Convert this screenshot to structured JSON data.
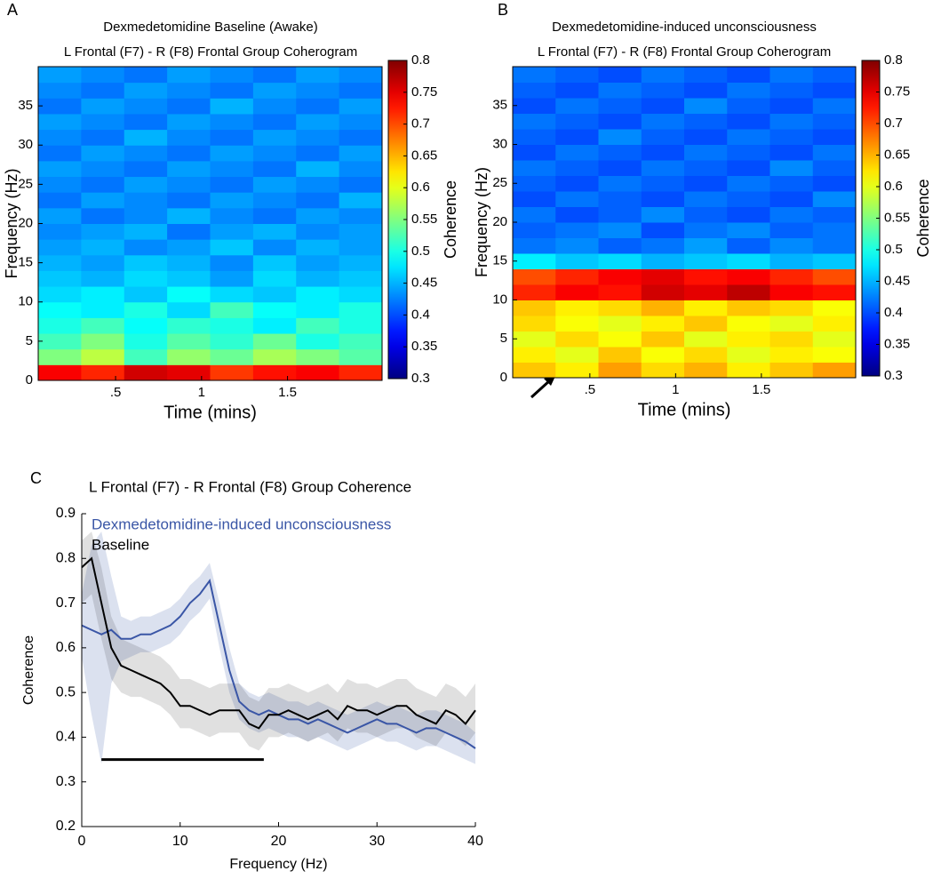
{
  "chart_data": [
    {
      "type": "heatmap",
      "panel": "A",
      "title": [
        "Dexmedetomidine Baseline (Awake)",
        "L Frontal (F7) -  R (F8) Frontal Group Coherogram"
      ],
      "xlabel": "Time (mins)",
      "ylabel": "Frequency (Hz)",
      "x": [
        0.175,
        0.425,
        0.675,
        0.925,
        1.175,
        1.425,
        1.675,
        1.925
      ],
      "y": [
        1,
        3,
        5,
        7,
        9,
        11,
        13,
        15,
        17,
        19,
        21,
        23,
        25,
        27,
        29,
        31,
        33,
        35,
        37,
        39
      ],
      "z": [
        [
          0.74,
          0.72,
          0.76,
          0.75,
          0.71,
          0.73,
          0.74,
          0.72
        ],
        [
          0.55,
          0.58,
          0.52,
          0.56,
          0.54,
          0.57,
          0.55,
          0.53
        ],
        [
          0.52,
          0.55,
          0.5,
          0.53,
          0.51,
          0.54,
          0.5,
          0.52
        ],
        [
          0.5,
          0.52,
          0.49,
          0.51,
          0.5,
          0.48,
          0.52,
          0.5
        ],
        [
          0.49,
          0.48,
          0.5,
          0.47,
          0.52,
          0.49,
          0.48,
          0.5
        ],
        [
          0.47,
          0.48,
          0.46,
          0.49,
          0.47,
          0.46,
          0.48,
          0.47
        ],
        [
          0.46,
          0.45,
          0.47,
          0.46,
          0.44,
          0.47,
          0.45,
          0.46
        ],
        [
          0.45,
          0.44,
          0.46,
          0.45,
          0.43,
          0.46,
          0.44,
          0.45
        ],
        [
          0.44,
          0.45,
          0.43,
          0.44,
          0.46,
          0.43,
          0.45,
          0.44
        ],
        [
          0.43,
          0.44,
          0.45,
          0.42,
          0.44,
          0.45,
          0.43,
          0.44
        ],
        [
          0.44,
          0.42,
          0.43,
          0.45,
          0.43,
          0.42,
          0.44,
          0.43
        ],
        [
          0.42,
          0.44,
          0.43,
          0.42,
          0.44,
          0.43,
          0.42,
          0.45
        ],
        [
          0.43,
          0.42,
          0.44,
          0.43,
          0.42,
          0.44,
          0.43,
          0.42
        ],
        [
          0.44,
          0.43,
          0.42,
          0.44,
          0.43,
          0.42,
          0.45,
          0.43
        ],
        [
          0.42,
          0.44,
          0.43,
          0.42,
          0.44,
          0.43,
          0.42,
          0.44
        ],
        [
          0.43,
          0.42,
          0.45,
          0.43,
          0.42,
          0.44,
          0.43,
          0.42
        ],
        [
          0.44,
          0.43,
          0.42,
          0.44,
          0.43,
          0.42,
          0.44,
          0.43
        ],
        [
          0.42,
          0.44,
          0.43,
          0.42,
          0.45,
          0.43,
          0.42,
          0.44
        ],
        [
          0.43,
          0.42,
          0.44,
          0.43,
          0.42,
          0.44,
          0.43,
          0.42
        ],
        [
          0.44,
          0.43,
          0.42,
          0.44,
          0.43,
          0.42,
          0.44,
          0.43
        ]
      ],
      "xlim": [
        0.05,
        2.05
      ],
      "ylim": [
        0,
        40
      ],
      "xticks": [
        {
          "value": 0.5,
          "label": ".5"
        },
        1,
        1.5
      ],
      "yticks": [
        0,
        5,
        10,
        15,
        20,
        25,
        30,
        35
      ],
      "colorbar": {
        "label": "Coherence",
        "clim": [
          0.3,
          0.8
        ],
        "ticks": [
          0.3,
          0.35,
          0.4,
          0.45,
          0.5,
          0.55,
          0.6,
          0.65,
          0.7,
          0.75,
          0.8
        ]
      }
    },
    {
      "type": "heatmap",
      "panel": "B",
      "title": [
        "Dexmedetomidine-induced unconsciousness",
        "L Frontal (F7) -  R (F8) Frontal Group Coherogram"
      ],
      "xlabel": "Time (mins)",
      "ylabel": "Frequency (Hz)",
      "x": [
        0.175,
        0.425,
        0.675,
        0.925,
        1.175,
        1.425,
        1.675,
        1.925
      ],
      "y": [
        1,
        3,
        5,
        7,
        9,
        11,
        13,
        15,
        17,
        19,
        21,
        23,
        25,
        27,
        29,
        31,
        33,
        35,
        37,
        39
      ],
      "z": [
        [
          0.64,
          0.62,
          0.66,
          0.63,
          0.65,
          0.62,
          0.64,
          0.66
        ],
        [
          0.62,
          0.6,
          0.64,
          0.61,
          0.63,
          0.6,
          0.62,
          0.61
        ],
        [
          0.6,
          0.63,
          0.61,
          0.64,
          0.6,
          0.62,
          0.63,
          0.6
        ],
        [
          0.63,
          0.61,
          0.6,
          0.62,
          0.64,
          0.61,
          0.6,
          0.62
        ],
        [
          0.64,
          0.62,
          0.63,
          0.65,
          0.62,
          0.64,
          0.63,
          0.61
        ],
        [
          0.72,
          0.74,
          0.73,
          0.76,
          0.75,
          0.77,
          0.74,
          0.73
        ],
        [
          0.7,
          0.72,
          0.74,
          0.75,
          0.73,
          0.74,
          0.72,
          0.7
        ],
        [
          0.48,
          0.46,
          0.47,
          0.45,
          0.46,
          0.47,
          0.45,
          0.46
        ],
        [
          0.42,
          0.43,
          0.41,
          0.42,
          0.44,
          0.41,
          0.43,
          0.42
        ],
        [
          0.41,
          0.42,
          0.43,
          0.4,
          0.42,
          0.43,
          0.41,
          0.42
        ],
        [
          0.42,
          0.4,
          0.41,
          0.43,
          0.41,
          0.4,
          0.42,
          0.41
        ],
        [
          0.4,
          0.42,
          0.41,
          0.4,
          0.42,
          0.41,
          0.4,
          0.43
        ],
        [
          0.41,
          0.4,
          0.42,
          0.41,
          0.4,
          0.42,
          0.41,
          0.4
        ],
        [
          0.42,
          0.41,
          0.4,
          0.42,
          0.41,
          0.4,
          0.43,
          0.41
        ],
        [
          0.4,
          0.42,
          0.41,
          0.4,
          0.42,
          0.41,
          0.4,
          0.42
        ],
        [
          0.41,
          0.4,
          0.43,
          0.41,
          0.4,
          0.42,
          0.41,
          0.4
        ],
        [
          0.42,
          0.41,
          0.4,
          0.42,
          0.41,
          0.4,
          0.42,
          0.41
        ],
        [
          0.4,
          0.42,
          0.41,
          0.4,
          0.43,
          0.41,
          0.4,
          0.42
        ],
        [
          0.41,
          0.4,
          0.42,
          0.41,
          0.4,
          0.42,
          0.41,
          0.4
        ],
        [
          0.42,
          0.41,
          0.4,
          0.42,
          0.41,
          0.4,
          0.42,
          0.41
        ]
      ],
      "xlim": [
        0.05,
        2.05
      ],
      "ylim": [
        0,
        40
      ],
      "xticks": [
        {
          "value": 0.5,
          "label": ".5"
        },
        1,
        1.5
      ],
      "yticks": [
        0,
        5,
        10,
        15,
        20,
        25,
        30,
        35
      ],
      "colorbar": {
        "label": "Coherence",
        "clim": [
          0.3,
          0.8
        ],
        "ticks": [
          0.3,
          0.35,
          0.4,
          0.45,
          0.5,
          0.55,
          0.6,
          0.65,
          0.7,
          0.75,
          0.8
        ]
      }
    },
    {
      "type": "line",
      "panel": "C",
      "title": "L Frontal (F7) - R Frontal (F8)  Group Coherence",
      "xlabel": "Frequency (Hz)",
      "ylabel": "Coherence",
      "x": [
        0,
        1,
        2,
        3,
        4,
        5,
        6,
        7,
        8,
        9,
        10,
        11,
        12,
        13,
        14,
        15,
        16,
        17,
        18,
        19,
        20,
        21,
        22,
        23,
        24,
        25,
        26,
        27,
        28,
        29,
        30,
        31,
        32,
        33,
        34,
        35,
        36,
        37,
        38,
        39,
        40
      ],
      "series": [
        {
          "name": "Dexmedetomidine-induced unconsciousness",
          "color": "#3a56a6",
          "values": [
            0.65,
            0.64,
            0.63,
            0.64,
            0.62,
            0.62,
            0.63,
            0.63,
            0.64,
            0.65,
            0.67,
            0.7,
            0.72,
            0.75,
            0.65,
            0.55,
            0.48,
            0.46,
            0.45,
            0.46,
            0.45,
            0.44,
            0.44,
            0.43,
            0.44,
            0.43,
            0.42,
            0.41,
            0.42,
            0.43,
            0.44,
            0.43,
            0.43,
            0.42,
            0.41,
            0.42,
            0.42,
            0.41,
            0.4,
            0.39,
            0.375
          ],
          "lower": [
            0.58,
            0.45,
            0.34,
            0.52,
            0.57,
            0.58,
            0.59,
            0.59,
            0.6,
            0.61,
            0.63,
            0.66,
            0.68,
            0.71,
            0.6,
            0.5,
            0.44,
            0.42,
            0.41,
            0.42,
            0.41,
            0.4,
            0.4,
            0.39,
            0.4,
            0.39,
            0.38,
            0.37,
            0.38,
            0.39,
            0.4,
            0.39,
            0.39,
            0.38,
            0.37,
            0.38,
            0.38,
            0.37,
            0.36,
            0.35,
            0.34
          ],
          "upper": [
            0.72,
            0.83,
            0.86,
            0.76,
            0.67,
            0.66,
            0.67,
            0.67,
            0.68,
            0.69,
            0.71,
            0.74,
            0.76,
            0.79,
            0.7,
            0.6,
            0.52,
            0.5,
            0.49,
            0.5,
            0.49,
            0.48,
            0.48,
            0.47,
            0.48,
            0.47,
            0.46,
            0.45,
            0.46,
            0.47,
            0.48,
            0.47,
            0.47,
            0.46,
            0.45,
            0.46,
            0.46,
            0.45,
            0.44,
            0.43,
            0.41
          ]
        },
        {
          "name": "Baseline",
          "color": "#000000",
          "values": [
            0.78,
            0.8,
            0.7,
            0.6,
            0.56,
            0.55,
            0.54,
            0.53,
            0.52,
            0.5,
            0.47,
            0.47,
            0.46,
            0.45,
            0.46,
            0.46,
            0.46,
            0.43,
            0.42,
            0.45,
            0.45,
            0.46,
            0.45,
            0.44,
            0.45,
            0.46,
            0.44,
            0.47,
            0.46,
            0.46,
            0.45,
            0.46,
            0.47,
            0.47,
            0.45,
            0.44,
            0.43,
            0.46,
            0.45,
            0.43,
            0.46
          ],
          "lower": [
            0.7,
            0.72,
            0.62,
            0.53,
            0.5,
            0.49,
            0.49,
            0.48,
            0.47,
            0.45,
            0.42,
            0.42,
            0.41,
            0.4,
            0.41,
            0.41,
            0.41,
            0.38,
            0.37,
            0.4,
            0.4,
            0.41,
            0.4,
            0.39,
            0.4,
            0.41,
            0.39,
            0.42,
            0.41,
            0.41,
            0.4,
            0.41,
            0.42,
            0.42,
            0.4,
            0.39,
            0.38,
            0.41,
            0.4,
            0.38,
            0.41
          ],
          "upper": [
            0.84,
            0.86,
            0.78,
            0.67,
            0.62,
            0.61,
            0.6,
            0.59,
            0.58,
            0.56,
            0.53,
            0.53,
            0.52,
            0.51,
            0.52,
            0.52,
            0.52,
            0.49,
            0.48,
            0.51,
            0.51,
            0.52,
            0.51,
            0.5,
            0.51,
            0.52,
            0.5,
            0.53,
            0.52,
            0.52,
            0.51,
            0.52,
            0.53,
            0.53,
            0.51,
            0.5,
            0.49,
            0.52,
            0.51,
            0.49,
            0.52
          ]
        }
      ],
      "significance": {
        "x": [
          2,
          18.5
        ],
        "y": 0.35
      },
      "xlim": [
        0,
        40
      ],
      "ylim": [
        0.2,
        0.9
      ],
      "xticks": [
        0,
        10,
        20,
        30,
        40
      ],
      "yticks": [
        0.2,
        0.3,
        0.4,
        0.5,
        0.6,
        0.7,
        0.8,
        0.9
      ]
    }
  ]
}
